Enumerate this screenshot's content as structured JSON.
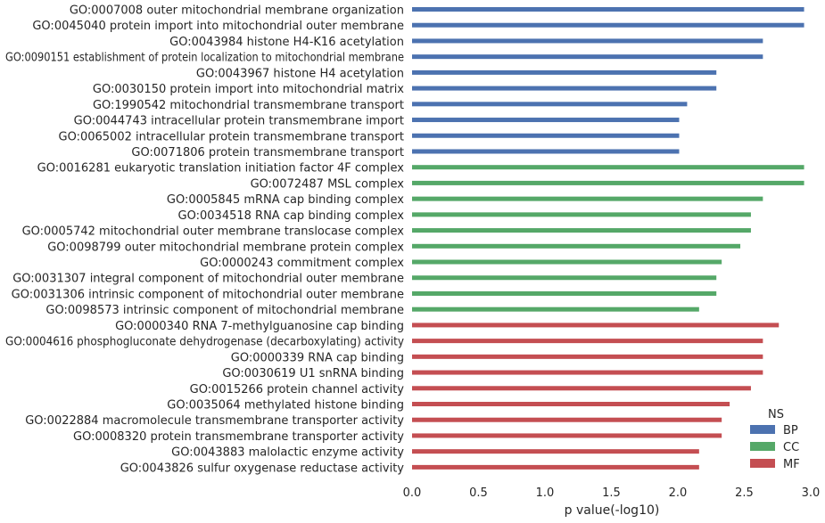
{
  "chart_data": {
    "type": "bar",
    "orientation": "horizontal",
    "xlabel": "p value(-log10)",
    "xlim": [
      0,
      3.0
    ],
    "xticks": [
      "0.0",
      "0.5",
      "1.0",
      "1.5",
      "2.0",
      "2.5",
      "3.0"
    ],
    "grid": false,
    "legend": {
      "title": "NS",
      "placement": "bottom-right",
      "entries": [
        "BP",
        "CC",
        "MF"
      ]
    },
    "colors": {
      "BP": "#4c72b0",
      "CC": "#55a868",
      "MF": "#c44e52"
    },
    "bars": [
      {
        "label": "GO:0007008 outer mitochondrial membrane organization",
        "value": 2.95,
        "ns": "BP"
      },
      {
        "label": "GO:0045040 protein import into mitochondrial outer membrane",
        "value": 2.95,
        "ns": "BP"
      },
      {
        "label": "GO:0043984 histone H4-K16 acetylation",
        "value": 2.64,
        "ns": "BP"
      },
      {
        "label": "GO:0090151 establishment of protein localization to mitochondrial membrane",
        "value": 2.64,
        "ns": "BP"
      },
      {
        "label": "GO:0043967 histone H4 acetylation",
        "value": 2.29,
        "ns": "BP"
      },
      {
        "label": "GO:0030150 protein import into mitochondrial matrix",
        "value": 2.29,
        "ns": "BP"
      },
      {
        "label": "GO:1990542 mitochondrial transmembrane transport",
        "value": 2.07,
        "ns": "BP"
      },
      {
        "label": "GO:0044743 intracellular protein transmembrane import",
        "value": 2.01,
        "ns": "BP"
      },
      {
        "label": "GO:0065002 intracellular protein transmembrane transport",
        "value": 2.01,
        "ns": "BP"
      },
      {
        "label": "GO:0071806 protein transmembrane transport",
        "value": 2.01,
        "ns": "BP"
      },
      {
        "label": "GO:0016281 eukaryotic translation initiation factor 4F complex",
        "value": 2.95,
        "ns": "CC"
      },
      {
        "label": "GO:0072487 MSL complex",
        "value": 2.95,
        "ns": "CC"
      },
      {
        "label": "GO:0005845 mRNA cap binding complex",
        "value": 2.64,
        "ns": "CC"
      },
      {
        "label": "GO:0034518 RNA cap binding complex",
        "value": 2.55,
        "ns": "CC"
      },
      {
        "label": "GO:0005742 mitochondrial outer membrane translocase complex",
        "value": 2.55,
        "ns": "CC"
      },
      {
        "label": "GO:0098799 outer mitochondrial membrane protein complex",
        "value": 2.47,
        "ns": "CC"
      },
      {
        "label": "GO:0000243 commitment complex",
        "value": 2.33,
        "ns": "CC"
      },
      {
        "label": "GO:0031307 integral component of mitochondrial outer membrane",
        "value": 2.29,
        "ns": "CC"
      },
      {
        "label": "GO:0031306 intrinsic component of mitochondrial outer membrane",
        "value": 2.29,
        "ns": "CC"
      },
      {
        "label": "GO:0098573 intrinsic component of mitochondrial membrane",
        "value": 2.16,
        "ns": "CC"
      },
      {
        "label": "GO:0000340 RNA 7-methylguanosine cap binding",
        "value": 2.76,
        "ns": "MF"
      },
      {
        "label": "GO:0004616 phosphogluconate dehydrogenase (decarboxylating) activity",
        "value": 2.64,
        "ns": "MF"
      },
      {
        "label": "GO:0000339 RNA cap binding",
        "value": 2.64,
        "ns": "MF"
      },
      {
        "label": "GO:0030619 U1 snRNA binding",
        "value": 2.64,
        "ns": "MF"
      },
      {
        "label": "GO:0015266 protein channel activity",
        "value": 2.55,
        "ns": "MF"
      },
      {
        "label": "GO:0035064 methylated histone binding",
        "value": 2.39,
        "ns": "MF"
      },
      {
        "label": "GO:0022884 macromolecule transmembrane transporter activity",
        "value": 2.33,
        "ns": "MF"
      },
      {
        "label": "GO:0008320 protein transmembrane transporter activity",
        "value": 2.33,
        "ns": "MF"
      },
      {
        "label": "GO:0043883 malolactic enzyme activity",
        "value": 2.16,
        "ns": "MF"
      },
      {
        "label": "GO:0043826 sulfur oxygenase reductase activity",
        "value": 2.16,
        "ns": "MF"
      }
    ]
  }
}
